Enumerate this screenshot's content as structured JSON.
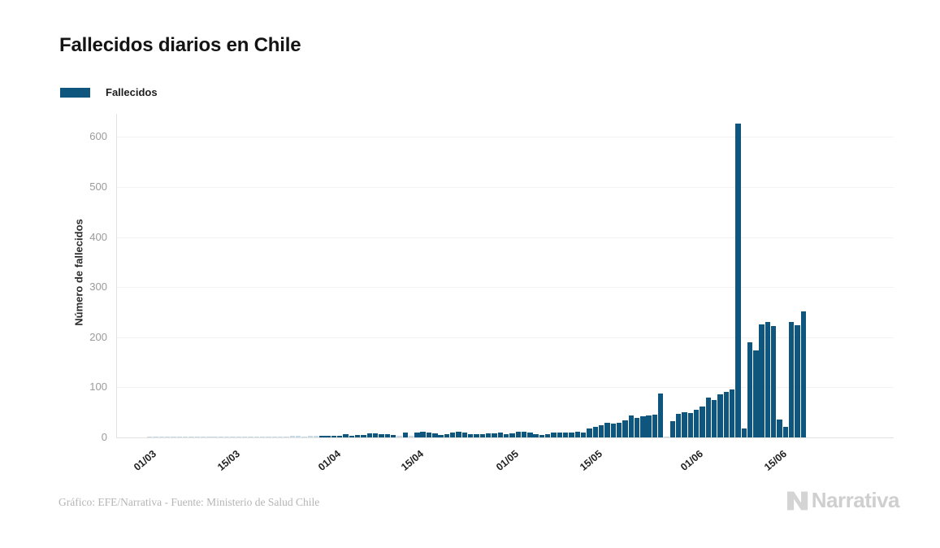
{
  "title": "Fallecidos diarios en Chile",
  "legend": {
    "label": "Fallecidos",
    "swatch_color": "#0f567e"
  },
  "footer": {
    "credit": "Gráfico: EFE/Narrativa - Fuente: Ministerio de Salud Chile"
  },
  "logo": {
    "text": "Narrativa"
  },
  "chart_data": {
    "type": "bar",
    "title": "Fallecidos diarios en Chile",
    "xlabel": "",
    "ylabel": "Número de fallecidos",
    "ylim": [
      0,
      650
    ],
    "yticks": [
      0,
      100,
      200,
      300,
      400,
      500,
      600
    ],
    "xtick_labels": [
      "01/03",
      "15/03",
      "01/04",
      "15/04",
      "01/05",
      "15/05",
      "01/06",
      "15/06"
    ],
    "grid": "horizontal",
    "legend_position": "top-left",
    "series_name": "Fallecidos",
    "bar_color": "#0f567e",
    "zero_bar_color": "#c6d9e5",
    "year_implied": "2020",
    "months": [
      {
        "month": "03",
        "values": [
          0,
          0,
          0,
          0,
          0,
          0,
          0,
          0,
          0,
          0,
          0,
          0,
          0,
          0,
          0,
          0,
          0,
          0,
          0,
          0,
          1,
          1,
          0,
          0,
          2,
          2,
          1,
          2,
          2,
          4,
          3
        ]
      },
      {
        "month": "04",
        "values": [
          4,
          4,
          6,
          4,
          5,
          5,
          8,
          8,
          7,
          7,
          5,
          2,
          9,
          2,
          9,
          11,
          9,
          8,
          5,
          6,
          9,
          11,
          10,
          7,
          6,
          6,
          8,
          8,
          9,
          7
        ]
      },
      {
        "month": "05",
        "values": [
          8,
          11,
          11,
          9,
          6,
          5,
          7,
          9,
          10,
          10,
          10,
          11,
          10,
          18,
          21,
          25,
          29,
          27,
          30,
          34,
          44,
          39,
          42,
          44,
          45,
          88,
          0,
          32,
          47,
          51,
          48
        ]
      },
      {
        "month": "06",
        "values": [
          55,
          62,
          79,
          74,
          86,
          91,
          95,
          627,
          18,
          190,
          173,
          225,
          231,
          222,
          36,
          21,
          230,
          224,
          251
        ]
      }
    ]
  }
}
